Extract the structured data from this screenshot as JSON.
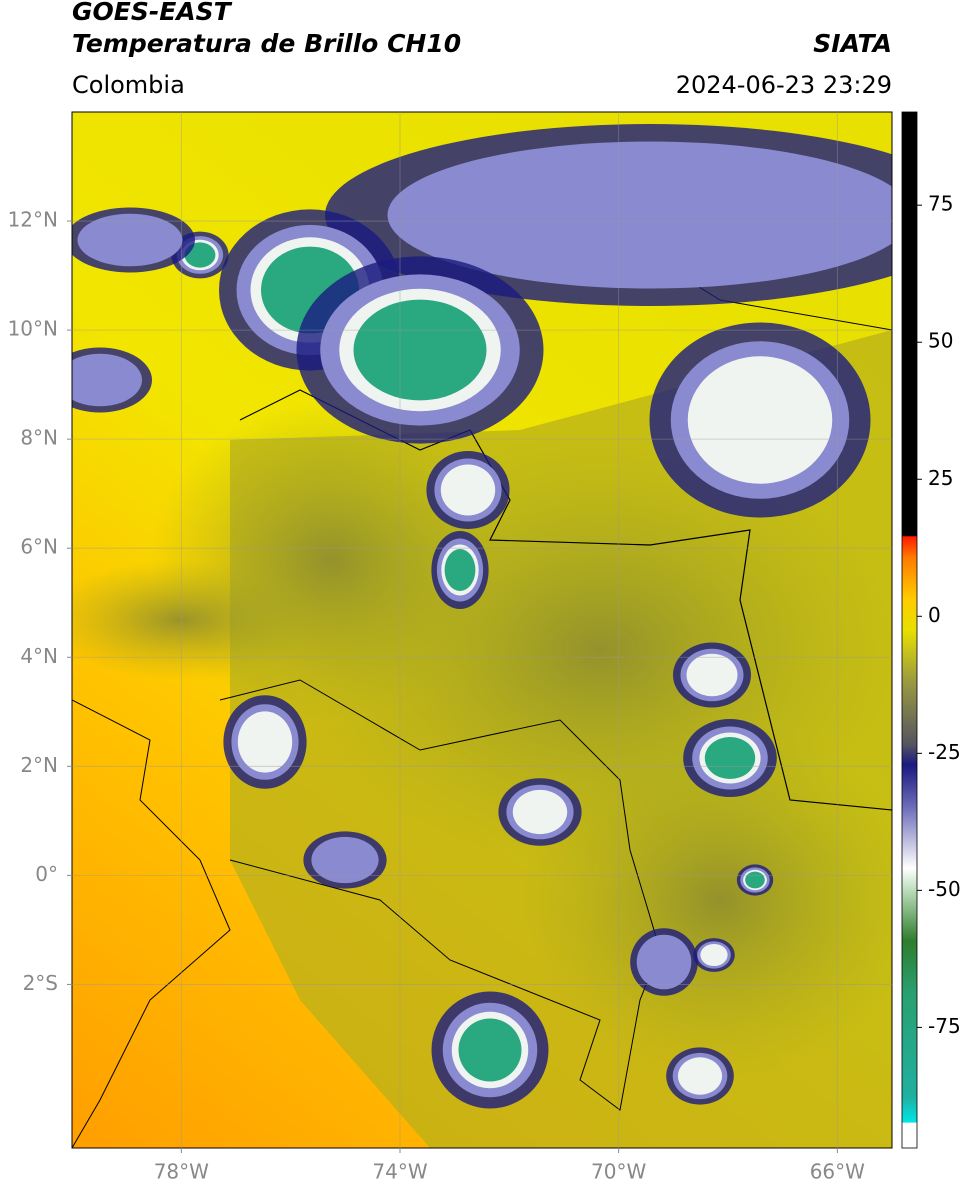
{
  "header": {
    "title": "GOES-EAST",
    "subtitle": "Temperatura de Brillo CH10",
    "source": "SIATA",
    "region": "Colombia",
    "datetime": "2024-06-23 23:29"
  },
  "map": {
    "xlim": [
      -80,
      -65
    ],
    "ylim": [
      -5,
      14
    ],
    "xticks": [
      {
        "value": -78,
        "label": "78°W"
      },
      {
        "value": -74,
        "label": "74°W"
      },
      {
        "value": -70,
        "label": "70°W"
      },
      {
        "value": -66,
        "label": "66°W"
      }
    ],
    "yticks": [
      {
        "value": 12,
        "label": "12°N"
      },
      {
        "value": 10,
        "label": "10°N"
      },
      {
        "value": 8,
        "label": "8°N"
      },
      {
        "value": 6,
        "label": "6°N"
      },
      {
        "value": 4,
        "label": "4°N"
      },
      {
        "value": 2,
        "label": "2°N"
      },
      {
        "value": 0,
        "label": "0°"
      },
      {
        "value": -2,
        "label": "2°S"
      }
    ],
    "grid": true
  },
  "colorbar": {
    "lim": [
      -97,
      92
    ],
    "ticks": [
      75,
      50,
      25,
      0,
      -25,
      -50,
      -75
    ]
  }
}
